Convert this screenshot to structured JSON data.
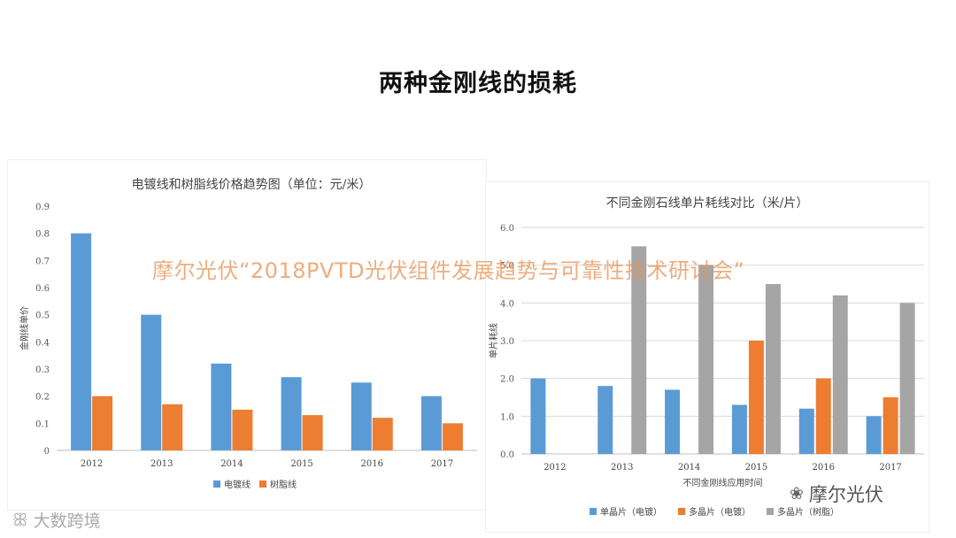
{
  "slide": {
    "title": "两种金刚线的损耗"
  },
  "watermark": "摩尔光伏“2018PVTD光伏组件发展趋势与可靠性技术研讨会”",
  "brand": {
    "name": "摩尔光伏",
    "icon": "wechat-icon"
  },
  "corner_logo": {
    "text": "大数跨境",
    "icon": "logo-icon"
  },
  "colors": {
    "blue": "#5B9BD5",
    "orange": "#ED7D31",
    "gray": "#A5A5A5"
  },
  "chart_data": [
    {
      "type": "bar",
      "title": "电镀线和树脂线价格趋势图（单位：元/米）",
      "xlabel": "",
      "ylabel": "金刚线单价",
      "categories": [
        "2012",
        "2013",
        "2014",
        "2015",
        "2016",
        "2017"
      ],
      "ylim": [
        0,
        0.9
      ],
      "yticks": [
        "0",
        "0.1",
        "0.2",
        "0.3",
        "0.4",
        "0.5",
        "0.6",
        "0.7",
        "0.8",
        "0.9"
      ],
      "grid": false,
      "legend": "bottom",
      "series": [
        {
          "name": "电镀线",
          "color": "#5B9BD5",
          "values": [
            0.8,
            0.5,
            0.32,
            0.27,
            0.25,
            0.2
          ]
        },
        {
          "name": "树脂线",
          "color": "#ED7D31",
          "values": [
            0.2,
            0.17,
            0.15,
            0.13,
            0.12,
            0.1
          ]
        }
      ]
    },
    {
      "type": "bar",
      "title": "不同金刚石线单片耗线对比（米/片）",
      "xlabel": "不同金刚线应用时间",
      "ylabel": "单片耗线",
      "categories": [
        "2012",
        "2013",
        "2014",
        "2015",
        "2016",
        "2017"
      ],
      "ylim": [
        0,
        6
      ],
      "yticks": [
        "0.0",
        "1.0",
        "2.0",
        "3.0",
        "4.0",
        "5.0",
        "6.0"
      ],
      "grid": true,
      "legend": "bottom",
      "series": [
        {
          "name": "单晶片（电镀）",
          "color": "#5B9BD5",
          "values": [
            2.0,
            1.8,
            1.7,
            1.3,
            1.2,
            1.0
          ]
        },
        {
          "name": "多晶片（电镀）",
          "color": "#ED7D31",
          "values": [
            null,
            null,
            null,
            3.0,
            2.0,
            1.5
          ]
        },
        {
          "name": "多晶片（树脂）",
          "color": "#A5A5A5",
          "values": [
            null,
            5.5,
            5.0,
            4.5,
            4.2,
            4.0
          ]
        }
      ]
    }
  ]
}
